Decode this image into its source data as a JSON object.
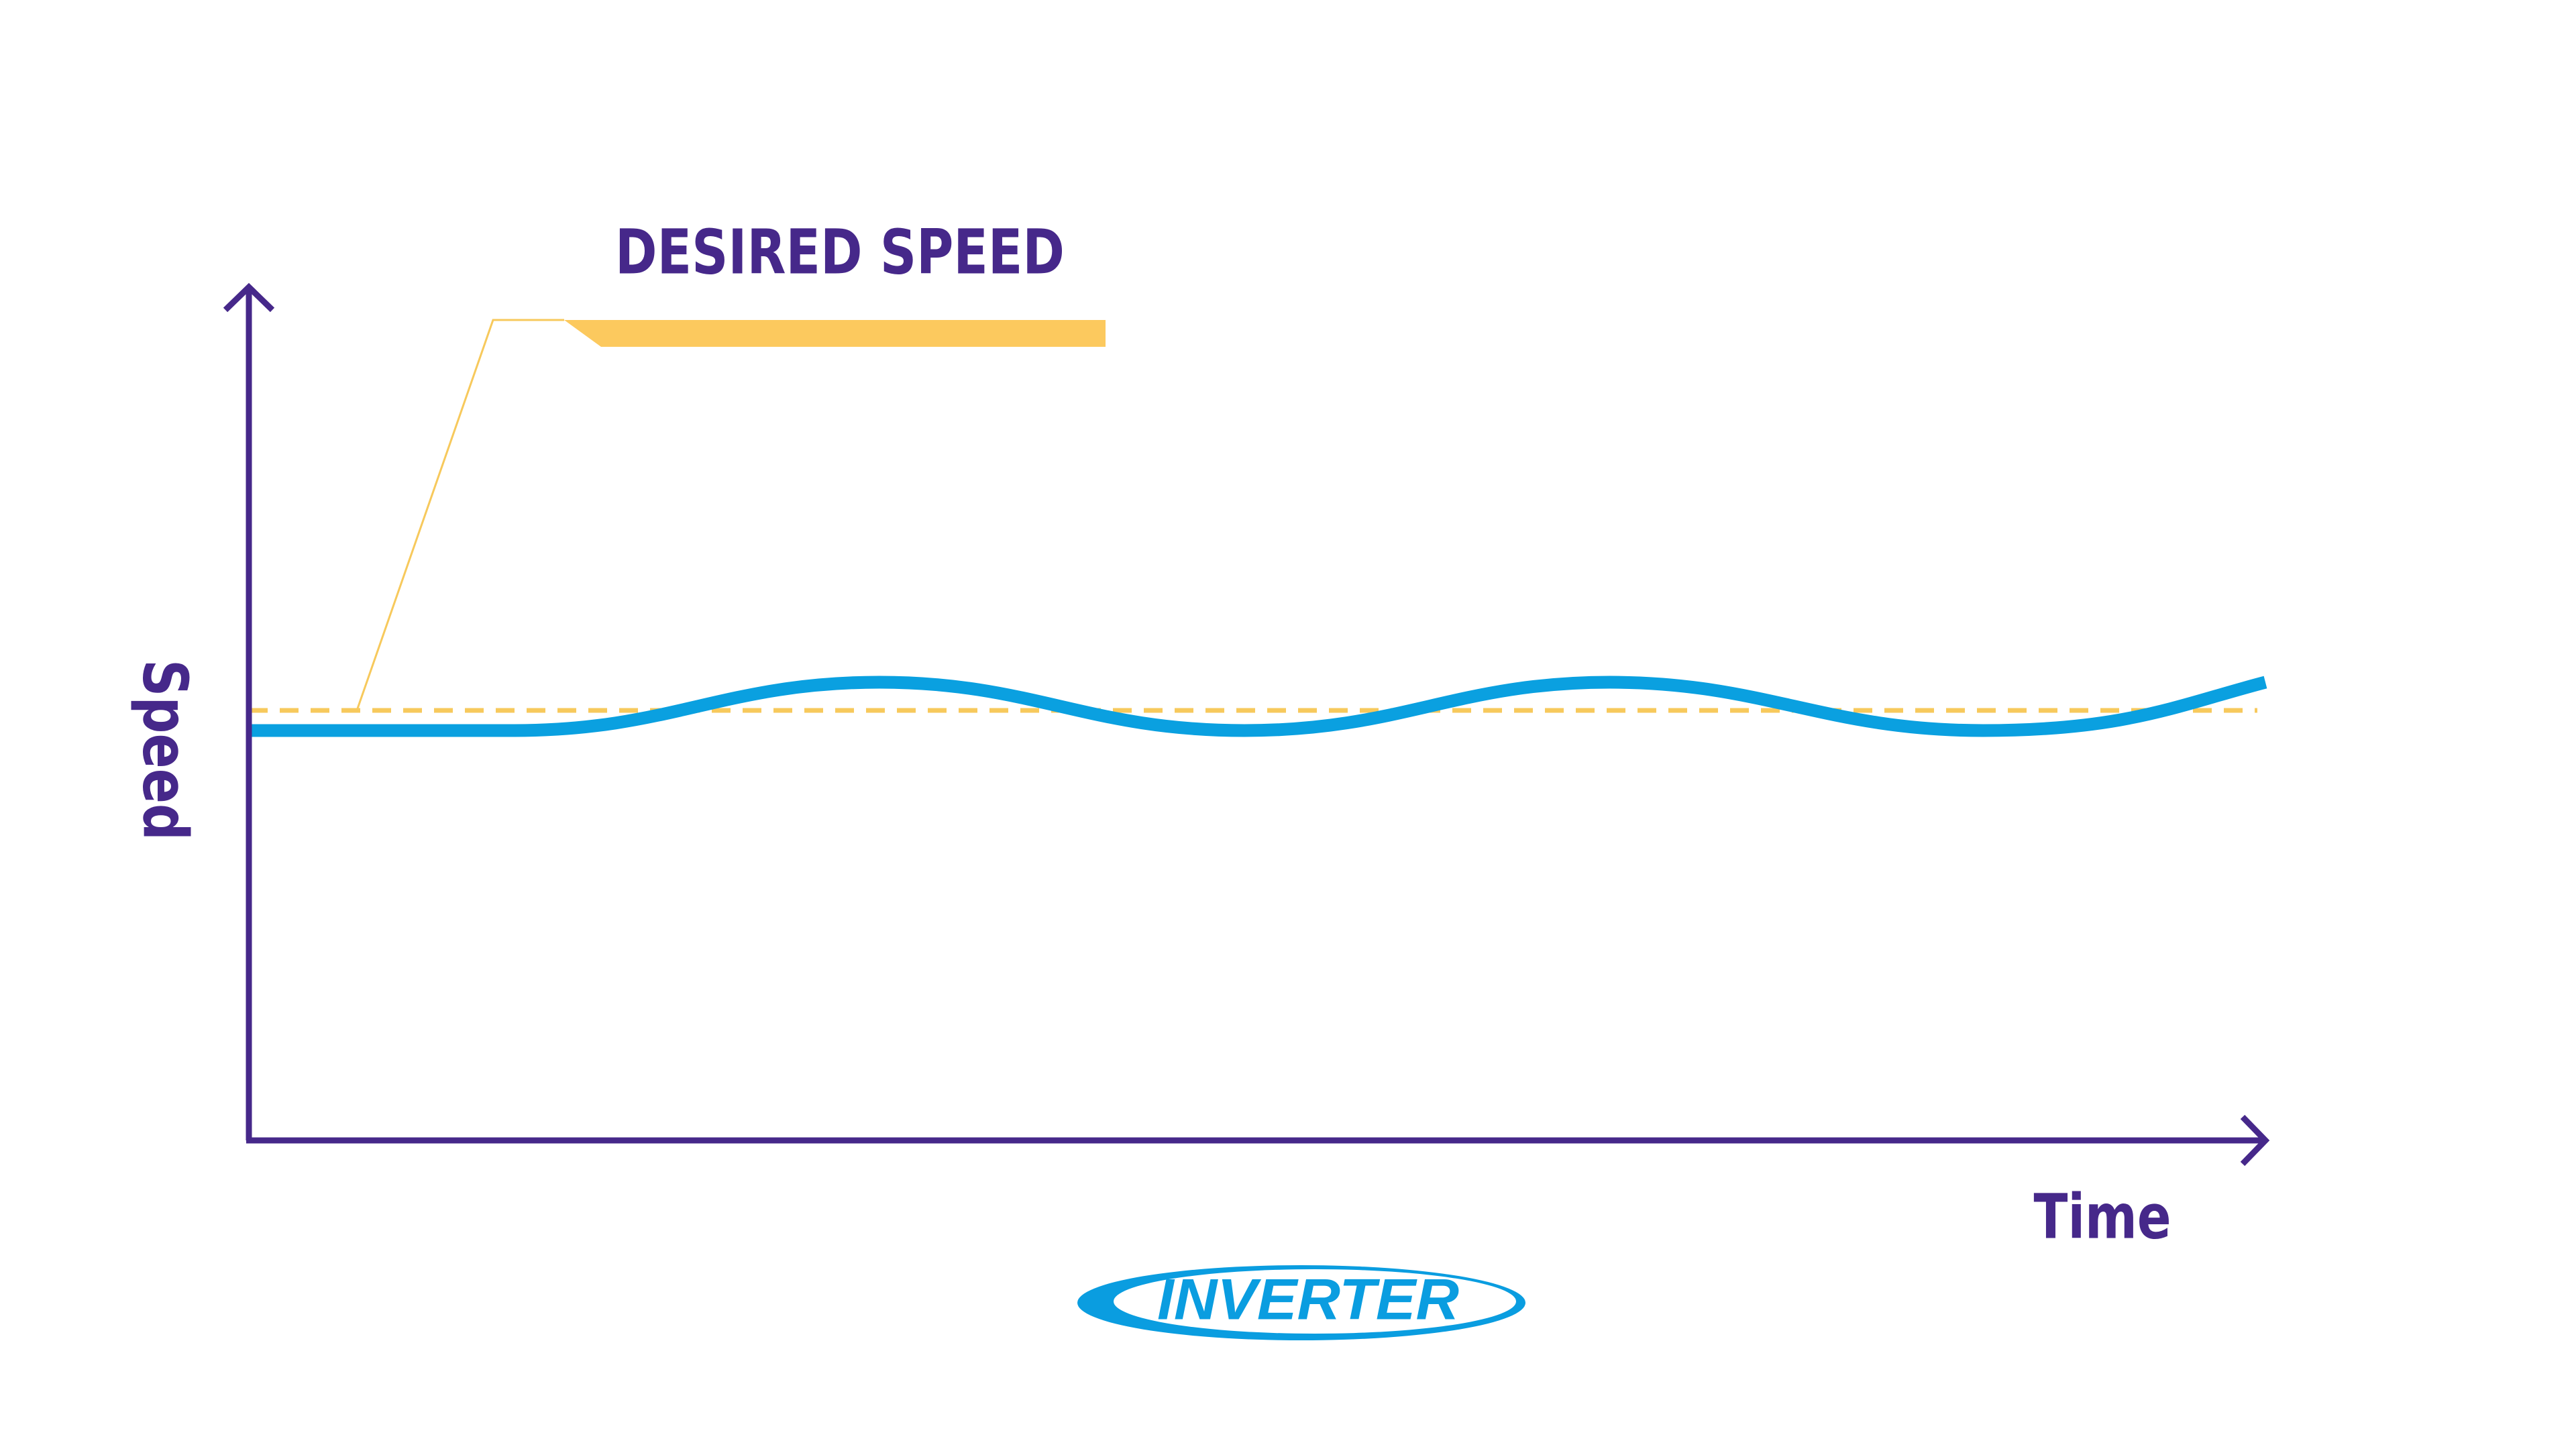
{
  "callout": {
    "label": "DESIRED SPEED"
  },
  "axes": {
    "y_label": "Speed",
    "x_label": "Time"
  },
  "logo": {
    "text": "INVERTER"
  }
}
